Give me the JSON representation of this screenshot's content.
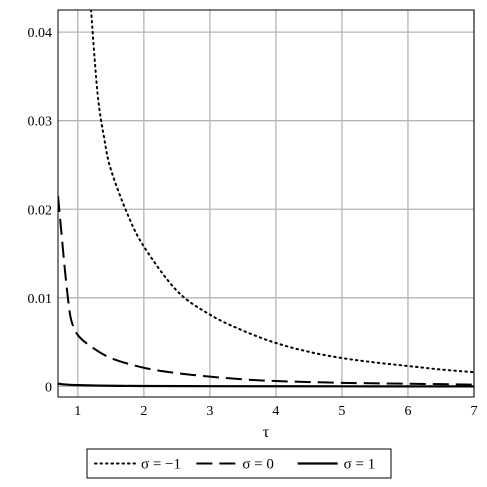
{
  "chart_data": {
    "type": "line",
    "title": "",
    "xlabel": "τ",
    "ylabel": "",
    "xlim": [
      0.7,
      7
    ],
    "ylim": [
      -0.0012,
      0.0425
    ],
    "x_ticks": [
      1,
      2,
      3,
      4,
      5,
      6,
      7
    ],
    "x_tick_labels": [
      "1",
      "2",
      "3",
      "4",
      "5",
      "6",
      "7"
    ],
    "y_ticks": [
      0,
      0.01,
      0.02,
      0.03,
      0.04
    ],
    "y_tick_labels": [
      "0",
      "0.01",
      "0.02",
      "0.03",
      "0.04"
    ],
    "grid": true,
    "legend_position": "bottom",
    "series": [
      {
        "name": "σ = −1",
        "style": "dotted",
        "color": "#000000",
        "x": [
          1.2,
          1.3,
          1.4,
          1.5,
          1.75,
          2,
          2.5,
          3,
          3.5,
          4,
          4.5,
          5,
          5.5,
          6,
          6.5,
          7
        ],
        "y": [
          0.0425,
          0.033,
          0.028,
          0.0245,
          0.0195,
          0.0158,
          0.0108,
          0.0081,
          0.0063,
          0.0049,
          0.0039,
          0.0032,
          0.0027,
          0.0023,
          0.0019,
          0.0016
        ]
      },
      {
        "name": "σ = 0",
        "style": "dashed",
        "color": "#000000",
        "x": [
          0.7,
          0.75,
          0.8,
          0.85,
          0.9,
          1.0,
          1.2,
          1.5,
          2,
          2.5,
          3,
          3.5,
          4,
          5,
          6,
          7
        ],
        "y": [
          0.0215,
          0.0175,
          0.0135,
          0.01,
          0.0075,
          0.0058,
          0.0045,
          0.0032,
          0.0021,
          0.0015,
          0.0011,
          0.0008,
          0.0006,
          0.0004,
          0.0003,
          0.0002
        ]
      },
      {
        "name": "σ = 1",
        "style": "solid",
        "color": "#000000",
        "x": [
          0.7,
          0.8,
          1.0,
          1.5,
          2,
          3,
          4,
          5,
          6,
          7
        ],
        "y": [
          0.0003,
          0.00022,
          0.00014,
          7e-05,
          4e-05,
          2e-05,
          1e-05,
          5e-06,
          3e-06,
          2e-06
        ]
      }
    ]
  }
}
